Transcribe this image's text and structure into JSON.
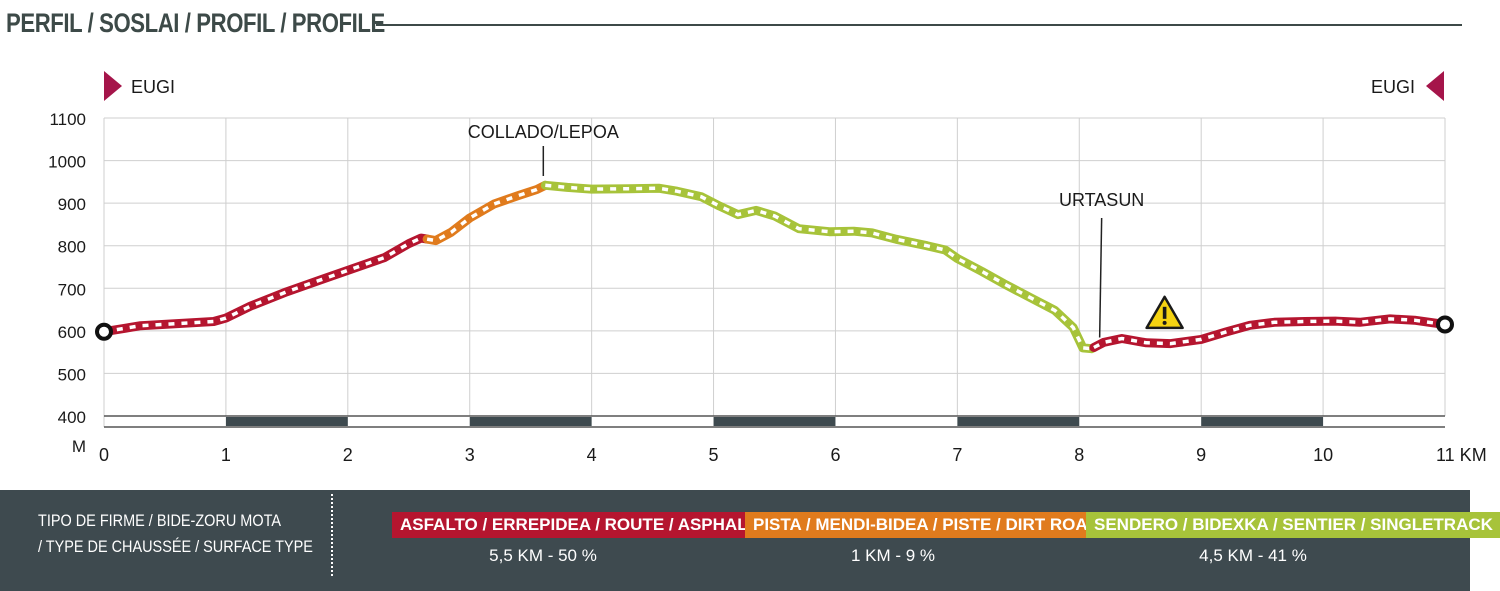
{
  "header": {
    "title": "PERFIL / SOSLAI / PROFIL / PROFILE"
  },
  "chart_data": {
    "type": "area",
    "ylabel": "M",
    "yticks": [
      400,
      500,
      600,
      700,
      800,
      900,
      1000,
      1100
    ],
    "xticks": [
      "0",
      "1",
      "2",
      "3",
      "4",
      "5",
      "6",
      "7",
      "8",
      "9",
      "10",
      "11 KM"
    ],
    "xlim": [
      0,
      11
    ],
    "ylim": [
      375,
      1100
    ],
    "grid": true,
    "start_label": "EUGI",
    "end_label": "EUGI",
    "annotations": [
      {
        "label": "COLLADO/LEPOA",
        "x": 3.62,
        "y": 945
      },
      {
        "label": "URTASUN",
        "x": 8.2,
        "y": 575
      }
    ],
    "warning": {
      "x": 8.7,
      "y": 640
    },
    "profile": [
      [
        0,
        598
      ],
      [
        0.3,
        612
      ],
      [
        0.6,
        617
      ],
      [
        0.9,
        622
      ],
      [
        1.0,
        630
      ],
      [
        1.2,
        658
      ],
      [
        1.5,
        692
      ],
      [
        1.8,
        722
      ],
      [
        2.1,
        752
      ],
      [
        2.3,
        772
      ],
      [
        2.5,
        805
      ],
      [
        2.6,
        818
      ],
      [
        2.72,
        812
      ],
      [
        2.85,
        832
      ],
      [
        3.0,
        865
      ],
      [
        3.2,
        898
      ],
      [
        3.4,
        918
      ],
      [
        3.55,
        932
      ],
      [
        3.62,
        942
      ],
      [
        3.8,
        937
      ],
      [
        4.0,
        933
      ],
      [
        4.3,
        934
      ],
      [
        4.55,
        935
      ],
      [
        4.7,
        928
      ],
      [
        4.9,
        915
      ],
      [
        5.05,
        893
      ],
      [
        5.2,
        873
      ],
      [
        5.35,
        883
      ],
      [
        5.5,
        870
      ],
      [
        5.7,
        840
      ],
      [
        5.95,
        833
      ],
      [
        6.15,
        834
      ],
      [
        6.3,
        830
      ],
      [
        6.5,
        815
      ],
      [
        6.75,
        800
      ],
      [
        6.9,
        790
      ],
      [
        7.0,
        770
      ],
      [
        7.2,
        740
      ],
      [
        7.4,
        708
      ],
      [
        7.6,
        678
      ],
      [
        7.8,
        648
      ],
      [
        7.95,
        608
      ],
      [
        8.03,
        560
      ],
      [
        8.1,
        558
      ],
      [
        8.2,
        573
      ],
      [
        8.35,
        582
      ],
      [
        8.55,
        572
      ],
      [
        8.75,
        570
      ],
      [
        9.0,
        580
      ],
      [
        9.2,
        597
      ],
      [
        9.4,
        613
      ],
      [
        9.6,
        620
      ],
      [
        9.85,
        622
      ],
      [
        10.1,
        623
      ],
      [
        10.3,
        620
      ],
      [
        10.55,
        628
      ],
      [
        10.75,
        625
      ],
      [
        11.0,
        615
      ]
    ],
    "segments": [
      {
        "surface": "asphalt",
        "from": 0,
        "to": 2.65
      },
      {
        "surface": "dirt",
        "from": 2.65,
        "to": 3.62
      },
      {
        "surface": "singletrack",
        "from": 3.62,
        "to": 8.12
      },
      {
        "surface": "asphalt",
        "from": 8.12,
        "to": 11
      }
    ],
    "scale_bar": [
      [
        1,
        2
      ],
      [
        3,
        4
      ],
      [
        5,
        6
      ],
      [
        7,
        8
      ],
      [
        9,
        10
      ]
    ]
  },
  "colors": {
    "asphalt": "#b5152f",
    "dirt": "#e07b1d",
    "singletrack": "#a7c33a",
    "marker": "#a5154a",
    "scalebar": "#3e4a4f"
  },
  "legend": {
    "title_line1": "TIPO DE FIRME / BIDE-ZORU MOTA",
    "title_line2": "/ TYPE DE CHAUSSÉE / SURFACE TYPE",
    "items": [
      {
        "label": "ASFALTO / ERREPIDEA / ROUTE / ASPHALT",
        "stat": "5,5 KM - 50 %",
        "color": "#b5152f"
      },
      {
        "label": "PISTA / MENDI-BIDEA / PISTE / DIRT ROAD",
        "stat": "1 KM - 9 %",
        "color": "#e07b1d"
      },
      {
        "label": "SENDERO  / BIDEXKA / SENTIER / SINGLETRACK",
        "stat": "4,5 KM - 41 %",
        "color": "#a7c33a"
      }
    ]
  }
}
